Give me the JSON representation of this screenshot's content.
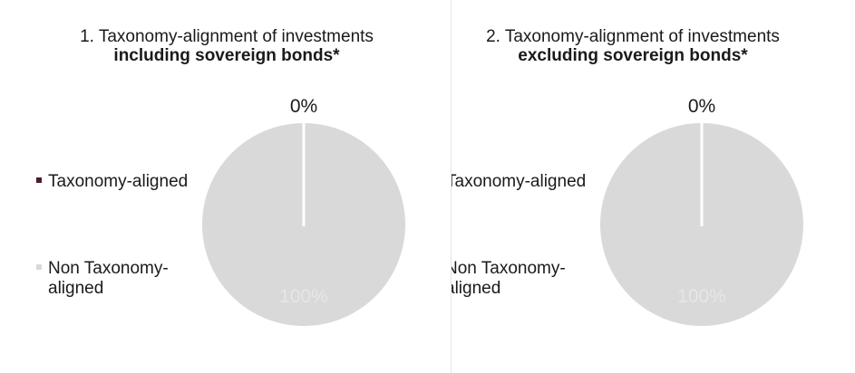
{
  "chart_data": [
    {
      "type": "pie",
      "title_line1": "1. Taxonomy-alignment of investments",
      "title_line2": "including sovereign bonds*",
      "slices": [
        {
          "name": "Taxonomy-aligned",
          "value": 0,
          "label": "0%",
          "color": "#4d1b30"
        },
        {
          "name": "Non Taxonomy-aligned",
          "value": 100,
          "label": "100%",
          "color": "#d9d9d9"
        }
      ],
      "legend": {
        "placement": "left",
        "items": [
          {
            "label": "Taxonomy-aligned",
            "color": "#4d1b30"
          },
          {
            "label_line1": "Non Taxonomy-",
            "label_line2": "aligned",
            "color": "#d9d9d9"
          }
        ]
      }
    },
    {
      "type": "pie",
      "title_line1": "2. Taxonomy-alignment of investments",
      "title_line2": "excluding sovereign bonds*",
      "slices": [
        {
          "name": "Taxonomy-aligned",
          "value": 0,
          "label": "0%",
          "color": "#4d1b30"
        },
        {
          "name": "Non Taxonomy-aligned",
          "value": 100,
          "label": "100%",
          "color": "#d9d9d9"
        }
      ],
      "legend": {
        "placement": "left",
        "items": [
          {
            "label": "Taxonomy-aligned",
            "color": "#4d1b30"
          },
          {
            "label_line1": "Non Taxonomy-",
            "label_line2": "aligned",
            "color": "#d9d9d9"
          }
        ]
      }
    }
  ]
}
